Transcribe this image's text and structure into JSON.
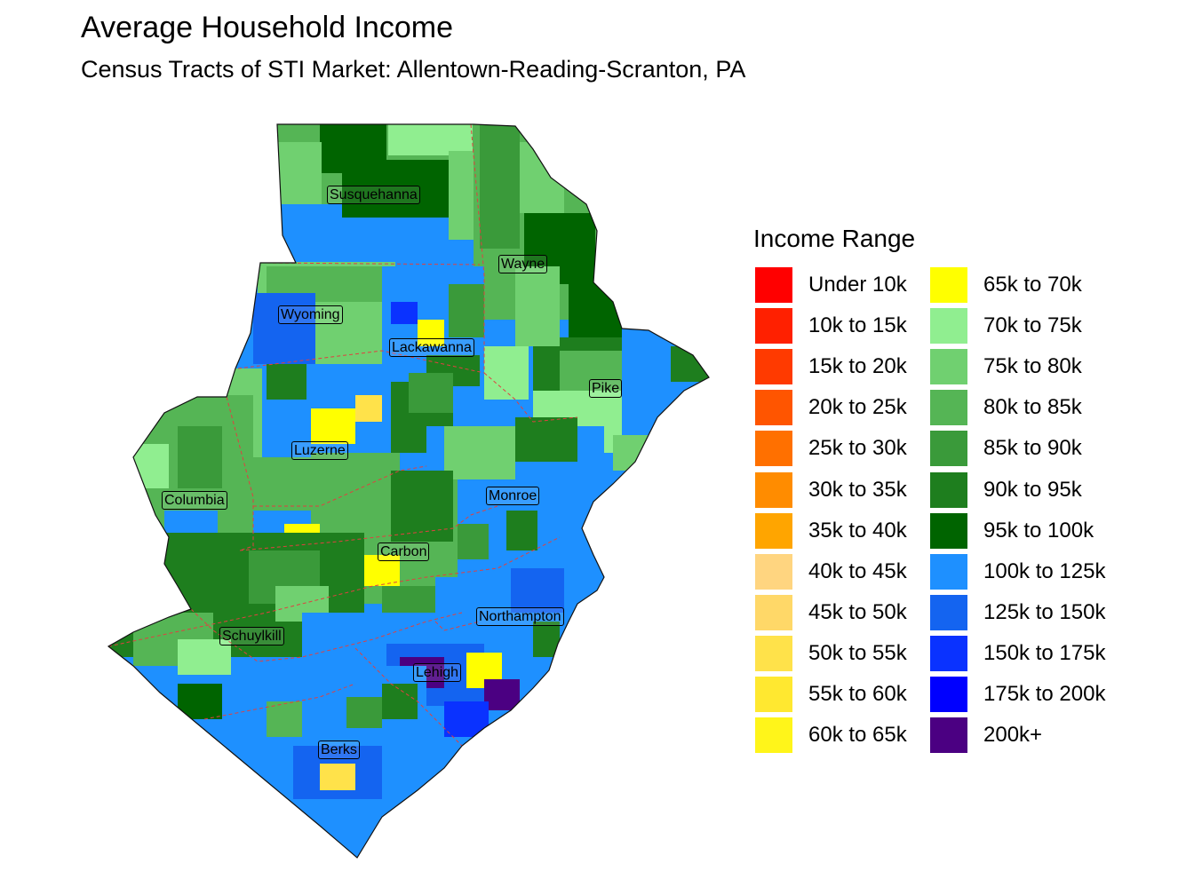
{
  "title": "Average Household Income",
  "subtitle": "Census Tracts of STI Market: Allentown-Reading-Scranton, PA",
  "legend": {
    "title": "Income Range",
    "items": [
      {
        "label": "Under 10k",
        "color": "#FF0000"
      },
      {
        "label": "10k to 15k",
        "color": "#FF2000"
      },
      {
        "label": "15k to 20k",
        "color": "#FF3A00"
      },
      {
        "label": "20k to 25k",
        "color": "#FF5500"
      },
      {
        "label": "25k to 30k",
        "color": "#FF7000"
      },
      {
        "label": "30k to 35k",
        "color": "#FF8C00"
      },
      {
        "label": "35k to 40k",
        "color": "#FFA500"
      },
      {
        "label": "40k to 45k",
        "color": "#FFD580"
      },
      {
        "label": "45k to 50k",
        "color": "#FFD868"
      },
      {
        "label": "50k to 55k",
        "color": "#FFE24A"
      },
      {
        "label": "55k to 60k",
        "color": "#FFE830"
      },
      {
        "label": "60k to 65k",
        "color": "#FFF51A"
      },
      {
        "label": "65k to 70k",
        "color": "#FFFF00"
      },
      {
        "label": "70k to 75k",
        "color": "#90EE90"
      },
      {
        "label": "75k to 80k",
        "color": "#70D070"
      },
      {
        "label": "80k to 85k",
        "color": "#55B555"
      },
      {
        "label": "85k to 90k",
        "color": "#3A9A3A"
      },
      {
        "label": "90k to 95k",
        "color": "#1E7E1E"
      },
      {
        "label": "95k to 100k",
        "color": "#006400"
      },
      {
        "label": "100k to 125k",
        "color": "#1E90FF"
      },
      {
        "label": "125k to 150k",
        "color": "#1464F0"
      },
      {
        "label": "150k to 175k",
        "color": "#0A32FF"
      },
      {
        "label": "175k to 200k",
        "color": "#0000FF"
      },
      {
        "label": "200k+",
        "color": "#4B0082"
      }
    ]
  },
  "counties": [
    {
      "name": "Susquehanna"
    },
    {
      "name": "Wayne"
    },
    {
      "name": "Wyoming"
    },
    {
      "name": "Lackawanna"
    },
    {
      "name": "Pike"
    },
    {
      "name": "Luzerne"
    },
    {
      "name": "Columbia"
    },
    {
      "name": "Monroe"
    },
    {
      "name": "Carbon"
    },
    {
      "name": "Northampton"
    },
    {
      "name": "Schuylkill"
    },
    {
      "name": "Lehigh"
    },
    {
      "name": "Berks"
    }
  ]
}
